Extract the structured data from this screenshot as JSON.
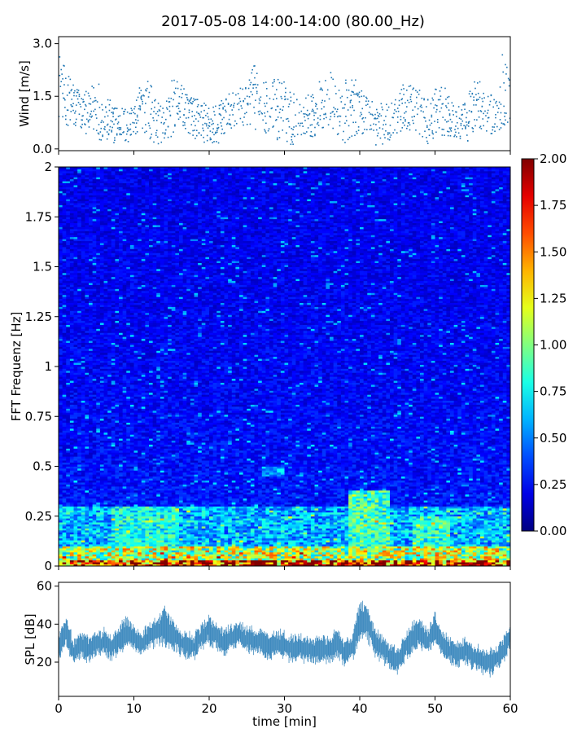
{
  "figure": {
    "title": "2017-05-08 14:00-14:00 (80.00_Hz)"
  },
  "chart_data": [
    {
      "type": "scatter",
      "panel": "wind",
      "ylabel": "Wind [m/s]",
      "xlabel": "",
      "xlim": [
        0,
        60
      ],
      "ylim": [
        -0.05,
        3.2
      ],
      "yticks": [
        "0.0",
        "1.5",
        "3.0"
      ],
      "ytick_values": [
        0,
        1.5,
        3.0
      ],
      "marker_color": "#1f77b4",
      "x_step_min": 0.1,
      "envelope": {
        "x": [
          0,
          1,
          2,
          3,
          4,
          5,
          6,
          7,
          8,
          9,
          10,
          11,
          12,
          13,
          14,
          15,
          16,
          17,
          18,
          19,
          20,
          21,
          22,
          23,
          24,
          25,
          26,
          27,
          28,
          29,
          30,
          31,
          32,
          33,
          34,
          35,
          36,
          37,
          38,
          39,
          40,
          41,
          42,
          43,
          44,
          45,
          46,
          47,
          48,
          49,
          50,
          51,
          52,
          53,
          54,
          55,
          56,
          57,
          58,
          59,
          60
        ],
        "ymax": [
          2.9,
          2.2,
          2.0,
          1.7,
          1.6,
          2.2,
          1.6,
          1.4,
          1.2,
          1.2,
          1.3,
          2.0,
          2.0,
          1.5,
          1.1,
          2.0,
          1.9,
          1.7,
          1.5,
          1.4,
          1.3,
          1.3,
          1.5,
          1.6,
          1.7,
          2.0,
          2.4,
          2.2,
          1.7,
          2.2,
          2.0,
          1.7,
          1.4,
          1.5,
          2.0,
          2.0,
          2.3,
          1.7,
          2.0,
          2.1,
          1.8,
          1.6,
          1.4,
          1.3,
          1.3,
          1.9,
          1.8,
          1.8,
          1.7,
          1.4,
          1.7,
          1.8,
          1.6,
          1.2,
          1.3,
          2.0,
          2.0,
          1.6,
          1.5,
          2.9,
          2.0
        ],
        "ymin": [
          0.9,
          0.7,
          0.5,
          0.5,
          0.4,
          0.3,
          0.2,
          0.1,
          0.3,
          0.1,
          0.3,
          0.6,
          0.3,
          0.1,
          0.2,
          0.3,
          0.8,
          0.5,
          0.3,
          0.2,
          0.1,
          0.1,
          0.3,
          0.6,
          0.6,
          0.7,
          0.5,
          0.6,
          0.3,
          0.2,
          0.1,
          0.1,
          0.3,
          0.4,
          0.3,
          0.5,
          0.6,
          0.3,
          0.1,
          0.3,
          0.5,
          0.3,
          0.1,
          0.1,
          0.2,
          0.4,
          0.6,
          0.5,
          0.3,
          0.1,
          0.2,
          0.4,
          0.3,
          0.2,
          0.1,
          0.4,
          0.6,
          0.4,
          0.3,
          0.7,
          0.5
        ]
      }
    },
    {
      "type": "heatmap",
      "panel": "spectrogram",
      "ylabel": "FFT Frequenz [Hz]",
      "xlabel": "",
      "xlim": [
        0,
        60
      ],
      "ylim": [
        0,
        2
      ],
      "yticks": [
        "0",
        "0.25",
        "0.5",
        "0.75",
        "1",
        "1.25",
        "1.5",
        "1.75",
        "2"
      ],
      "ytick_values": [
        0,
        0.25,
        0.5,
        0.75,
        1,
        1.25,
        1.5,
        1.75,
        2
      ],
      "colormap": "jet",
      "colorbar": {
        "vmin": 0.0,
        "vmax": 2.0,
        "ticks": [
          "0.00",
          "0.25",
          "0.50",
          "0.75",
          "1.00",
          "1.25",
          "1.50",
          "1.75",
          "2.00"
        ],
        "tick_values": [
          0,
          0.25,
          0.5,
          0.75,
          1,
          1.25,
          1.5,
          1.75,
          2
        ]
      },
      "time_bins": 120,
      "freq_bins": 200,
      "background_level_approx": 0.2,
      "high_energy_bands": [
        {
          "freq_range": [
            0,
            0.03
          ],
          "level": 1.8
        },
        {
          "freq_range": [
            0.03,
            0.1
          ],
          "level": 1.1
        },
        {
          "freq_range": [
            0.1,
            0.3
          ],
          "level": 0.6
        }
      ],
      "bursts": [
        {
          "time_range": [
            7,
            16
          ],
          "freq_range": [
            0.1,
            0.3
          ],
          "level": 0.85
        },
        {
          "time_range": [
            38.5,
            44
          ],
          "freq_range": [
            0.05,
            0.38
          ],
          "level": 0.95
        },
        {
          "time_range": [
            47,
            52
          ],
          "freq_range": [
            0.05,
            0.25
          ],
          "level": 0.9
        },
        {
          "time_range": [
            27,
            30
          ],
          "freq_range": [
            0.45,
            0.5
          ],
          "level": 0.65
        }
      ]
    },
    {
      "type": "line",
      "panel": "spl",
      "ylabel": "SPL [dB]",
      "xlabel": "time [min]",
      "xlim": [
        0,
        60
      ],
      "ylim": [
        2,
        62
      ],
      "yticks": [
        "20",
        "40",
        "60"
      ],
      "ytick_values": [
        20,
        40,
        60
      ],
      "xticks": [
        "0",
        "10",
        "20",
        "30",
        "40",
        "50",
        "60"
      ],
      "xtick_values": [
        0,
        10,
        20,
        30,
        40,
        50,
        60
      ],
      "line_color": "#1f77b4",
      "x": [
        0,
        1,
        2,
        3,
        4,
        5,
        6,
        7,
        8,
        9,
        10,
        11,
        12,
        13,
        14,
        15,
        16,
        17,
        18,
        19,
        20,
        21,
        22,
        23,
        24,
        25,
        26,
        27,
        28,
        29,
        30,
        31,
        32,
        33,
        34,
        35,
        36,
        37,
        38,
        39,
        40,
        41,
        42,
        43,
        44,
        45,
        46,
        47,
        48,
        49,
        50,
        51,
        52,
        53,
        54,
        55,
        56,
        57,
        58,
        59,
        60
      ],
      "y": [
        28,
        36,
        25,
        29,
        27,
        30,
        31,
        27,
        32,
        36,
        33,
        30,
        33,
        36,
        39,
        35,
        31,
        29,
        28,
        34,
        37,
        33,
        31,
        33,
        35,
        32,
        31,
        30,
        28,
        30,
        29,
        27,
        28,
        27,
        26,
        27,
        26,
        30,
        25,
        27,
        42,
        41,
        31,
        27,
        23,
        21,
        27,
        33,
        35,
        31,
        38,
        29,
        26,
        24,
        26,
        23,
        21,
        20,
        21,
        26,
        34
      ],
      "band_halfwidth": [
        5,
        6,
        5,
        5,
        5,
        5,
        5,
        5,
        5,
        6,
        5,
        5,
        5,
        6,
        8,
        6,
        5,
        5,
        5,
        5,
        6,
        5,
        5,
        5,
        5,
        5,
        5,
        5,
        5,
        5,
        5,
        5,
        5,
        5,
        5,
        5,
        5,
        6,
        5,
        5,
        8,
        7,
        6,
        5,
        5,
        5,
        5,
        6,
        6,
        5,
        6,
        5,
        5,
        5,
        5,
        5,
        5,
        5,
        5,
        5,
        5
      ]
    }
  ]
}
